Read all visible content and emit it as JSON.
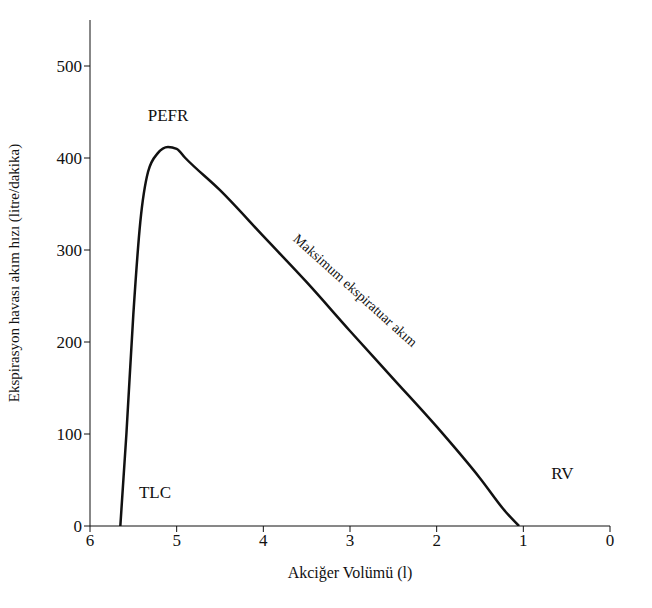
{
  "chart_data": {
    "type": "line",
    "x_label": "Akciğer Volümü (l)",
    "y_label": "Ekspirasyon havası akım hızı (litre/dakika)",
    "xlim": [
      6,
      0
    ],
    "xticks": [
      6,
      5,
      4,
      3,
      2,
      1,
      0
    ],
    "ylim": [
      0,
      550
    ],
    "yticks": [
      0,
      100,
      200,
      300,
      400,
      500
    ],
    "grid": false,
    "color": "#111111",
    "x": [
      5.65,
      5.58,
      5.5,
      5.42,
      5.33,
      5.22,
      5.1,
      5.0,
      4.9,
      4.5,
      4.0,
      3.5,
      3.0,
      2.5,
      2.0,
      1.5,
      1.2,
      1.05
    ],
    "values": [
      0,
      100,
      230,
      330,
      385,
      405,
      412,
      410,
      400,
      365,
      315,
      265,
      212,
      160,
      108,
      52,
      15,
      0
    ],
    "annotations": [
      {
        "text": "PEFR",
        "x": 5.1,
        "y": 445
      },
      {
        "text": "TLC",
        "x": 5.25,
        "y": 35
      },
      {
        "text": "RV",
        "x": 0.55,
        "y": 55
      },
      {
        "text": "Maksimum ekspiratuar akım",
        "x": 2.95,
        "y": 255
      }
    ]
  }
}
